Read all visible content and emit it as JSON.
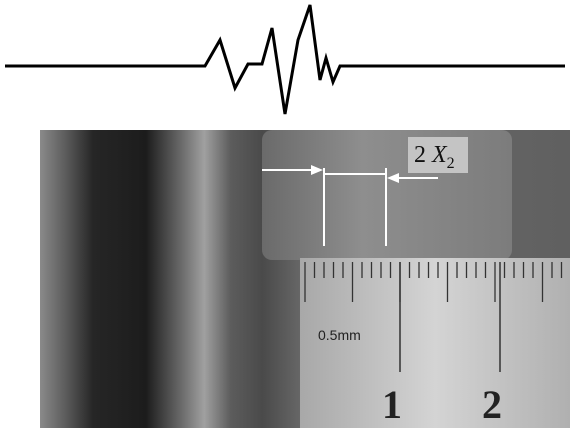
{
  "annotation": {
    "coefficient": "2",
    "symbol": "X",
    "subscript": "2"
  },
  "ruler": {
    "unit_label": "0.5mm",
    "numbers": [
      "1",
      "2"
    ]
  }
}
